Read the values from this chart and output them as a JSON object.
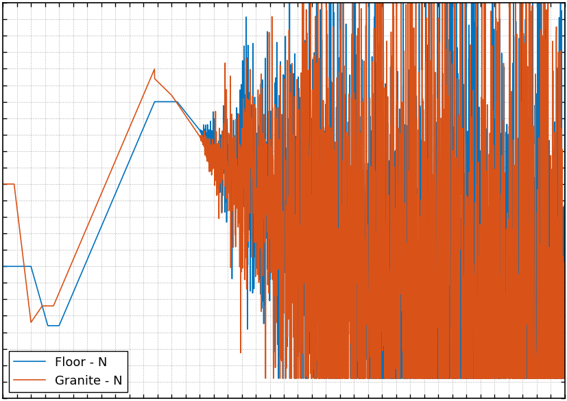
{
  "title": "",
  "xlabel": "",
  "ylabel": "",
  "line1_label": "Floor - N",
  "line2_label": "Granite - N",
  "line1_color": "#0072BD",
  "line2_color": "#D95319",
  "background_color": "#ffffff",
  "grid_color": "#aaaaaa",
  "legend_loc": "lower left",
  "figsize": [
    8.28,
    5.86
  ],
  "dpi": 100,
  "legend_fontsize": 13,
  "linewidth": 1.2
}
